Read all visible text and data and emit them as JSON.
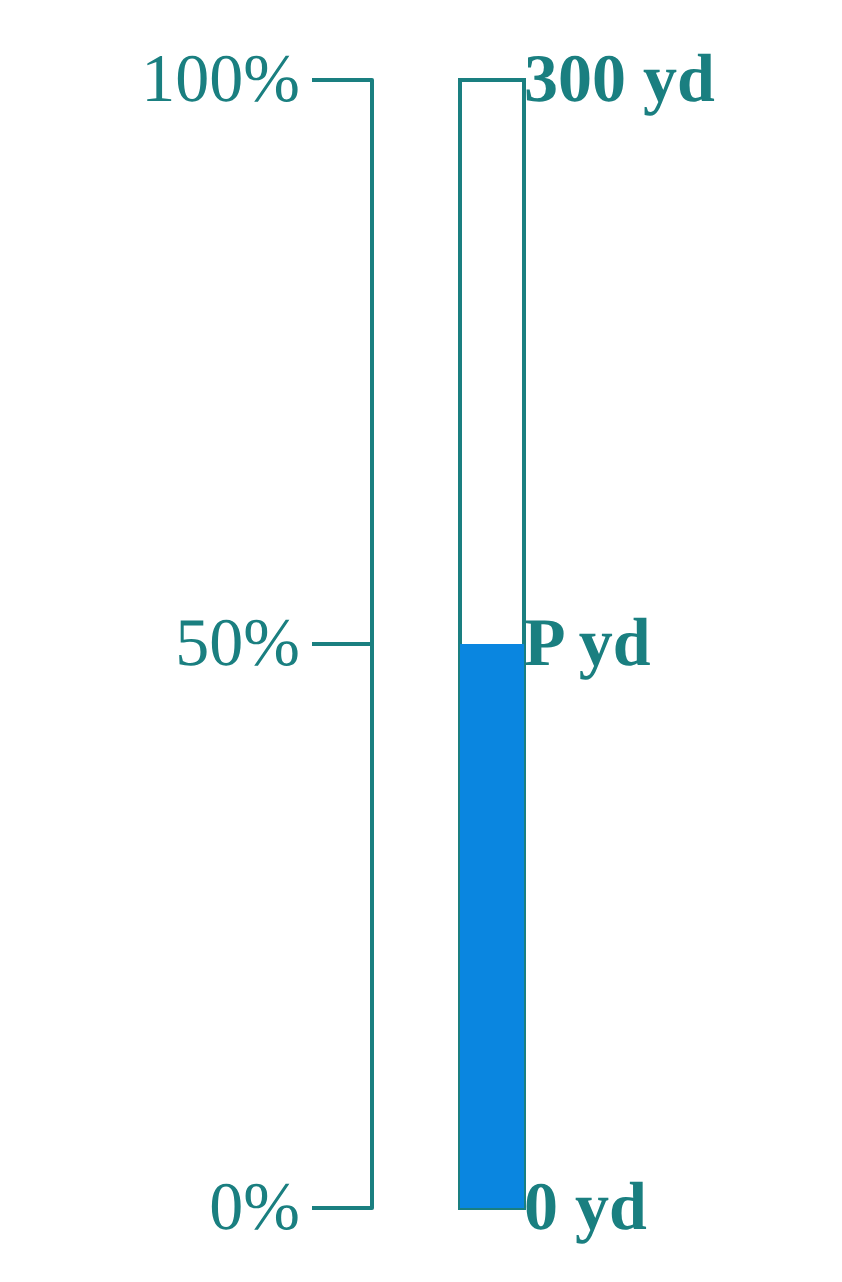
{
  "chart_data": {
    "type": "bar",
    "categories": [
      null
    ],
    "values": [
      50
    ],
    "color": "#0a86e0",
    "ylim": [
      0,
      100
    ],
    "yticks": [
      {
        "value": 0,
        "label": "0%"
      },
      {
        "value": 50,
        "label": "50%"
      },
      {
        "value": 100,
        "label": "100%"
      }
    ],
    "y2lim": [
      0,
      300
    ],
    "y2ticks": [
      {
        "value": 0,
        "label": "0 yd"
      },
      {
        "value": 150,
        "label": "P yd"
      },
      {
        "value": 300,
        "label": "300 yd"
      }
    ]
  }
}
